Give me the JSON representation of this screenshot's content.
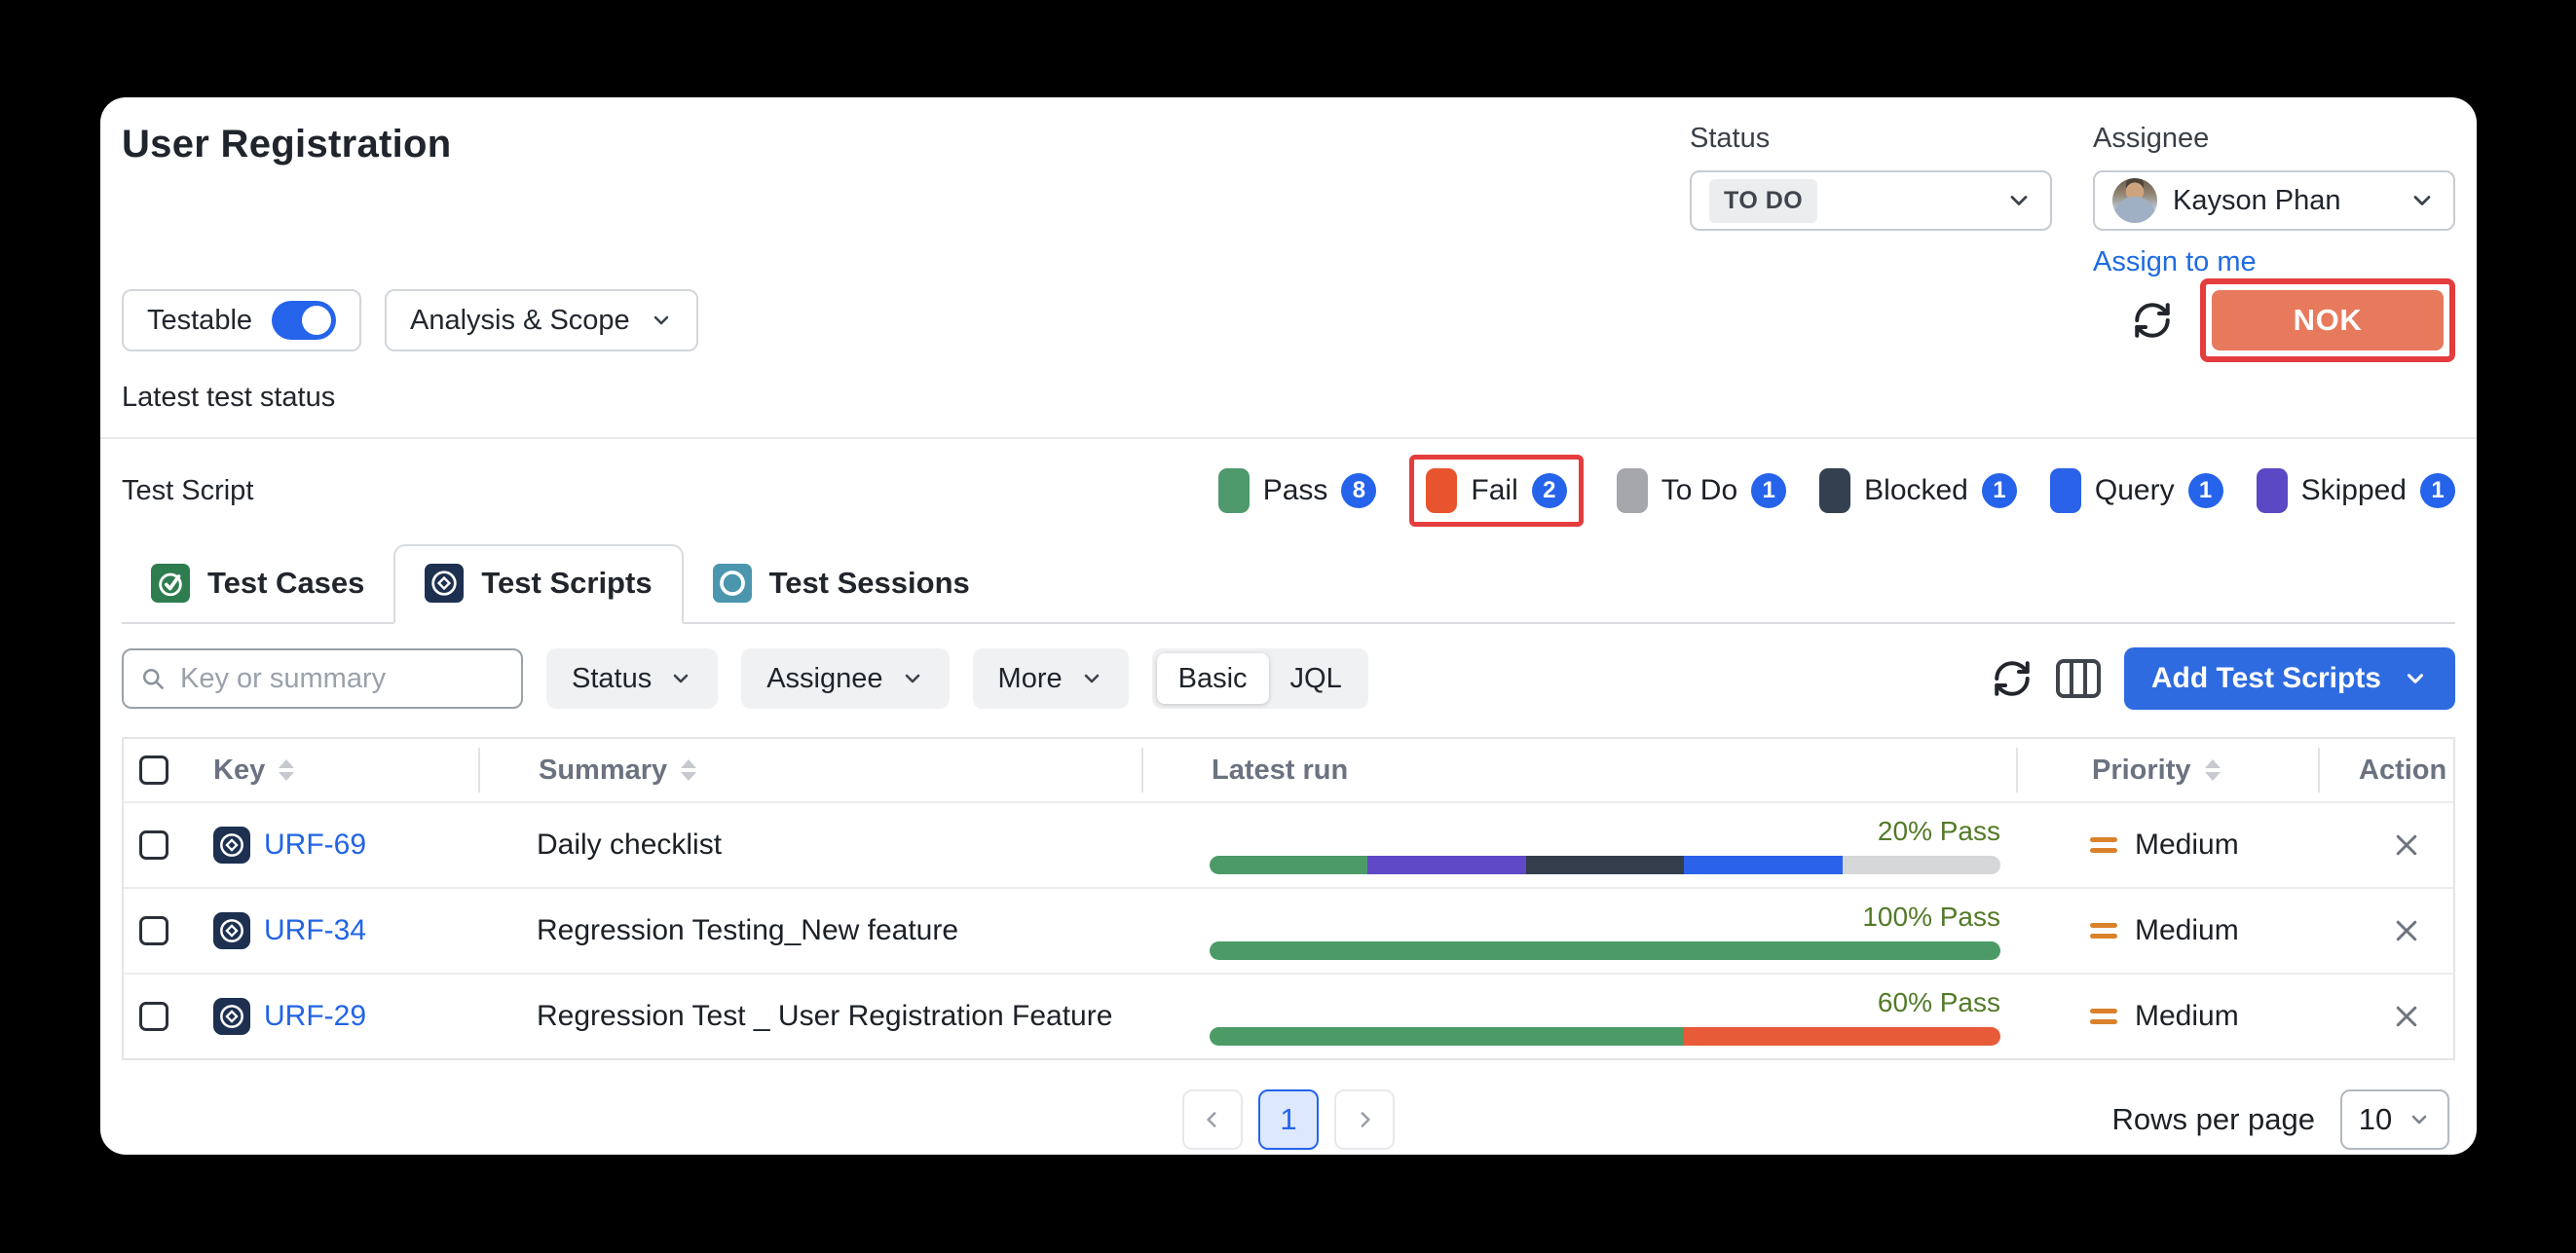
{
  "page": {
    "title": "User Registration"
  },
  "header": {
    "status": {
      "label": "Status",
      "value": "TO DO"
    },
    "assignee": {
      "label": "Assignee",
      "name": "Kayson Phan",
      "assign_link": "Assign to me"
    }
  },
  "toolbar": {
    "testable_label": "Testable",
    "testable_on": true,
    "toggle_color": "#2563eb",
    "scope_label": "Analysis & Scope",
    "nok_label": "NOK",
    "nok_color": "#e7795d",
    "highlight_color": "#e43d3e"
  },
  "latest_status_label": "Latest test status",
  "status_summary": {
    "label": "Test Script",
    "count_badge_color": "#2563eb",
    "badges": [
      {
        "name": "Pass",
        "count": "8",
        "color": "#4f9a6d",
        "highlighted": false
      },
      {
        "name": "Fail",
        "count": "2",
        "color": "#e8542e",
        "highlighted": true
      },
      {
        "name": "To Do",
        "count": "1",
        "color": "#a5a7aa",
        "highlighted": false
      },
      {
        "name": "Blocked",
        "count": "1",
        "color": "#33404f",
        "highlighted": false
      },
      {
        "name": "Query",
        "count": "1",
        "color": "#2a62ea",
        "highlighted": false
      },
      {
        "name": "Skipped",
        "count": "1",
        "color": "#5b48c4",
        "highlighted": false
      }
    ]
  },
  "tabs": [
    {
      "label": "Test Cases",
      "icon": "check-circle",
      "icon_color": "#2e7d4f",
      "active": false
    },
    {
      "label": "Test Scripts",
      "icon": "diamond-circle",
      "icon_color": "#1d3050",
      "active": true
    },
    {
      "label": "Test Sessions",
      "icon": "circle",
      "icon_color": "#4b96ae",
      "active": false
    }
  ],
  "filters": {
    "search_placeholder": "Key or summary",
    "dropdowns": [
      "Status",
      "Assignee",
      "More"
    ],
    "mode_options": [
      "Basic",
      "JQL"
    ],
    "mode_selected": "Basic",
    "add_button_label": "Add Test Scripts"
  },
  "table": {
    "columns": [
      {
        "label": "Key",
        "sortable": true
      },
      {
        "label": "Summary",
        "sortable": true
      },
      {
        "label": "Latest run",
        "sortable": false
      },
      {
        "label": "Priority",
        "sortable": true
      },
      {
        "label": "Action",
        "sortable": false
      }
    ],
    "priority_color": "#d9822b",
    "rows": [
      {
        "key": "URF-69",
        "summary": "Daily checklist",
        "run_label": "20% Pass",
        "segments": [
          {
            "color": "#4c9a66",
            "pct": 20
          },
          {
            "color": "#5f49c6",
            "pct": 20
          },
          {
            "color": "#333d4c",
            "pct": 20
          },
          {
            "color": "#2a62ea",
            "pct": 20
          },
          {
            "color": "#d5d7d9",
            "pct": 20
          }
        ],
        "priority": "Medium"
      },
      {
        "key": "URF-34",
        "summary": "Regression Testing_New feature",
        "run_label": "100% Pass",
        "segments": [
          {
            "color": "#4c9a66",
            "pct": 100
          }
        ],
        "priority": "Medium"
      },
      {
        "key": "URF-29",
        "summary": "Regression Test _ User Registration Feature",
        "run_label": "60% Pass",
        "segments": [
          {
            "color": "#4c9a66",
            "pct": 60
          },
          {
            "color": "#e75b38",
            "pct": 40
          }
        ],
        "priority": "Medium"
      }
    ]
  },
  "pagination": {
    "current_page": "1",
    "rows_per_page_label": "Rows per page",
    "page_size": "10"
  }
}
